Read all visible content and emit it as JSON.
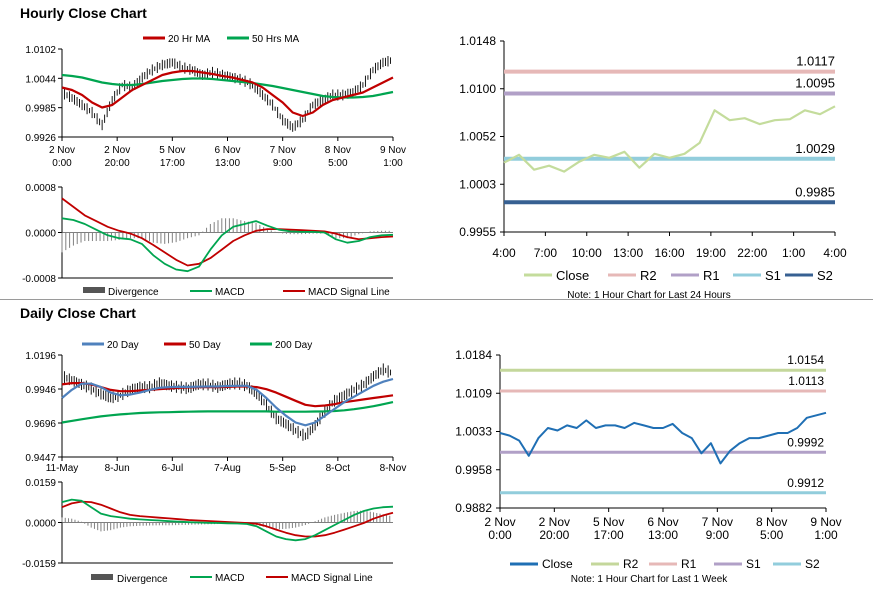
{
  "hourly_title": "Hourly Close Chart",
  "daily_title": "Daily Close Chart",
  "colors": {
    "ma20": "#c00000",
    "ma50": "#00a550",
    "close": "#2e75b6",
    "bars": "#000000",
    "divergence": "#808080",
    "macd": "#00a550",
    "signal": "#c00000",
    "levels_close": "#c4dc9c",
    "r2": "#e6b8b7",
    "r1": "#b1a0c7",
    "s1": "#92cddc",
    "s2": "#376092",
    "daily_ma20": "#4f81bd",
    "daily_close": "#1f6fb4",
    "daily_r2": "#c4d79b",
    "daily_r1": "#e6b8b7",
    "daily_s1": "#b1a0c7",
    "daily_s2": "#92cddc"
  },
  "chart_data": [
    {
      "id": "hourly_price",
      "type": "line",
      "legend": [
        "20 Hr MA",
        "50 Hrs MA"
      ],
      "yticks": [
        "1.0102",
        "1.0044",
        "0.9985",
        "0.9926"
      ],
      "ylim": [
        0.9926,
        1.0102
      ],
      "xticks": [
        [
          "2 Nov",
          "0:00"
        ],
        [
          "2 Nov",
          "20:00"
        ],
        [
          "5 Nov",
          "17:00"
        ],
        [
          "6 Nov",
          "13:00"
        ],
        [
          "7 Nov",
          "9:00"
        ],
        [
          "8 Nov",
          "5:00"
        ],
        [
          "9 Nov",
          "1:00"
        ]
      ],
      "close": [
        1.0015,
        1.0004,
        0.999,
        0.9975,
        0.995,
        1.0,
        1.003,
        1.0025,
        1.0045,
        1.006,
        1.007,
        1.0075,
        1.0065,
        1.006,
        1.005,
        1.0055,
        1.005,
        1.0045,
        1.004,
        1.003,
        1.001,
        0.999,
        0.996,
        0.9945,
        0.996,
        0.999,
        1.0,
        1.001,
        1.001,
        1.0015,
        1.003,
        1.006,
        1.0075,
        1.008
      ],
      "series": [
        {
          "name": "20 Hr MA",
          "values": [
            1.0025,
            1.002,
            1.001,
            0.9995,
            0.9985,
            0.999,
            1.0005,
            1.002,
            1.003,
            1.004,
            1.005,
            1.0055,
            1.0058,
            1.0058,
            1.0055,
            1.0052,
            1.0048,
            1.0045,
            1.004,
            1.0035,
            1.0025,
            1.001,
            0.9995,
            0.9975,
            0.9968,
            0.9975,
            0.999,
            1.0,
            1.0005,
            1.001,
            1.0015,
            1.0025,
            1.0035,
            1.0045
          ]
        },
        {
          "name": "50 Hrs MA",
          "values": [
            1.005,
            1.0048,
            1.0045,
            1.004,
            1.0035,
            1.0032,
            1.003,
            1.003,
            1.0032,
            1.0035,
            1.0038,
            1.004,
            1.0042,
            1.0043,
            1.0043,
            1.0042,
            1.004,
            1.0038,
            1.0036,
            1.0034,
            1.0031,
            1.0028,
            1.0024,
            1.002,
            1.0016,
            1.0012,
            1.0008,
            1.0006,
            1.0005,
            1.0005,
            1.0006,
            1.0008,
            1.0012,
            1.0016
          ]
        }
      ]
    },
    {
      "id": "hourly_macd",
      "type": "line",
      "legend": [
        "Divergence",
        "MACD",
        "MACD Signal Line"
      ],
      "yticks": [
        "0.0008",
        "0.0000",
        "-0.0008"
      ],
      "ylim": [
        -0.0008,
        0.0008
      ],
      "macd": [
        0.00025,
        0.00022,
        0.00015,
        5e-05,
        -5e-05,
        -0.0001,
        -0.00012,
        -0.0002,
        -0.0004,
        -0.00055,
        -0.00065,
        -0.00068,
        -0.0006,
        -0.0003,
        -5e-05,
        0.0001,
        0.00015,
        0.0002,
        0.00012,
        5e-05,
        2e-05,
        1e-05,
        1e-05,
        0.0,
        -0.00012,
        -0.00018,
        -0.00015,
        -8e-05,
        -5e-05,
        -4e-05
      ],
      "signal": [
        0.0006,
        0.00045,
        0.0003,
        0.0002,
        0.0001,
        3e-05,
        -2e-05,
        -0.0001,
        -0.00022,
        -0.00035,
        -0.00048,
        -0.00058,
        -0.00055,
        -0.00045,
        -0.0003,
        -0.00015,
        -5e-05,
        3e-05,
        6e-05,
        6e-05,
        5e-05,
        4e-05,
        3e-05,
        2e-05,
        -2e-05,
        -8e-05,
        -0.00012,
        -0.0001,
        -8e-05,
        -7e-05
      ],
      "divergence": [
        -0.00035,
        -0.00023,
        -0.00015,
        -0.00015,
        -0.00015,
        -0.00013,
        -0.0001,
        -0.0001,
        -0.00018,
        -0.0002,
        -0.00017,
        -0.0001,
        -5e-05,
        0.00015,
        0.00025,
        0.00025,
        0.0002,
        0.00017,
        6e-05,
        -1e-05,
        -3e-05,
        -3e-05,
        -2e-05,
        -2e-05,
        -0.0001,
        -0.0001,
        -3e-05,
        2e-05,
        3e-05,
        3e-05
      ]
    },
    {
      "id": "hourly_levels",
      "type": "line",
      "yticks": [
        "1.0148",
        "1.0100",
        "1.0052",
        "1.0003",
        "0.9955"
      ],
      "ylim": [
        0.9955,
        1.0148
      ],
      "xticks": [
        "4:00",
        "7:00",
        "10:00",
        "13:00",
        "16:00",
        "19:00",
        "22:00",
        "1:00",
        "4:00"
      ],
      "close": [
        1.0025,
        1.0033,
        1.0018,
        1.0022,
        1.0016,
        1.0026,
        1.0033,
        1.003,
        1.0036,
        1.002,
        1.0034,
        1.003,
        1.0034,
        1.0045,
        1.0078,
        1.0068,
        1.007,
        1.0064,
        1.0068,
        1.0069,
        1.0078,
        1.0074,
        1.0082
      ],
      "levels": [
        {
          "name": "R2",
          "value": 1.0117,
          "label": "1.0117"
        },
        {
          "name": "R1",
          "value": 1.0095,
          "label": "1.0095"
        },
        {
          "name": "S1",
          "value": 1.0029,
          "label": "1.0029"
        },
        {
          "name": "S2",
          "value": 0.9985,
          "label": "0.9985"
        }
      ],
      "legend": [
        "Close",
        "R2",
        "R1",
        "S1",
        "S2"
      ],
      "note": "Note: 1 Hour Chart for Last 24 Hours"
    },
    {
      "id": "daily_price",
      "type": "line",
      "legend": [
        "20 Day",
        "50 Day",
        "200 Day"
      ],
      "yticks": [
        "1.0196",
        "0.9946",
        "0.9696",
        "0.9447"
      ],
      "ylim": [
        0.9447,
        1.0196
      ],
      "xticks": [
        "11-May",
        "8-Jun",
        "6-Jul",
        "7-Aug",
        "5-Sep",
        "8-Oct",
        "8-Nov"
      ],
      "close": [
        1.004,
        1.001,
        0.998,
        0.995,
        0.991,
        0.988,
        0.99,
        0.994,
        0.996,
        0.996,
        0.999,
        0.997,
        0.996,
        0.995,
        0.998,
        0.998,
        0.996,
        0.998,
        0.999,
        0.997,
        0.991,
        0.983,
        0.973,
        0.969,
        0.964,
        0.96,
        0.968,
        0.978,
        0.986,
        0.99,
        0.994,
        0.998,
        1.004,
        1.009,
        1.006
      ],
      "series": [
        {
          "name": "20 Day",
          "values": [
            0.988,
            0.994,
            0.9985,
            0.9985,
            0.996,
            0.992,
            0.99,
            0.9905,
            0.992,
            0.994,
            0.9955,
            0.996,
            0.9962,
            0.9962,
            0.9963,
            0.9965,
            0.9965,
            0.9968,
            0.997,
            0.997,
            0.994,
            0.988,
            0.981,
            0.975,
            0.97,
            0.968,
            0.97,
            0.975,
            0.98,
            0.985,
            0.989,
            0.993,
            0.997,
            1.0,
            1.002
          ]
        },
        {
          "name": "50 Day",
          "values": [
            0.998,
            0.999,
            0.999,
            0.998,
            0.996,
            0.994,
            0.993,
            0.993,
            0.9935,
            0.994,
            0.9945,
            0.995,
            0.9955,
            0.9958,
            0.996,
            0.996,
            0.996,
            0.9962,
            0.9965,
            0.9965,
            0.996,
            0.9945,
            0.992,
            0.989,
            0.986,
            0.983,
            0.982,
            0.9825,
            0.9835,
            0.985,
            0.986,
            0.987,
            0.988,
            0.989,
            0.99
          ]
        },
        {
          "name": "200 Day",
          "values": [
            0.97,
            0.9712,
            0.9724,
            0.9735,
            0.9745,
            0.9753,
            0.976,
            0.9765,
            0.977,
            0.9773,
            0.9775,
            0.9776,
            0.9778,
            0.978,
            0.9781,
            0.9782,
            0.9782,
            0.9782,
            0.9782,
            0.9782,
            0.9782,
            0.9782,
            0.978,
            0.978,
            0.978,
            0.978,
            0.9781,
            0.9782,
            0.9785,
            0.979,
            0.9798,
            0.9808,
            0.982,
            0.9835,
            0.985
          ]
        }
      ]
    },
    {
      "id": "daily_macd",
      "type": "line",
      "legend": [
        "Divergence",
        "MACD",
        "MACD Signal Line"
      ],
      "yticks": [
        "0.0159",
        "0.0000",
        "-0.0159"
      ],
      "ylim": [
        -0.0159,
        0.0159
      ],
      "macd": [
        0.008,
        0.009,
        0.0085,
        0.006,
        0.0035,
        0.0025,
        0.002,
        0.0015,
        0.0012,
        0.001,
        0.0008,
        0.0005,
        0.0003,
        0.0001,
        0.0,
        -0.0001,
        -0.0002,
        -0.0003,
        -0.0004,
        -0.0006,
        -0.0015,
        -0.0035,
        -0.0055,
        -0.0065,
        -0.007,
        -0.0065,
        -0.005,
        -0.003,
        -0.001,
        0.001,
        0.003,
        0.0045,
        0.0055,
        0.006,
        0.0062
      ],
      "signal": [
        0.006,
        0.0075,
        0.0082,
        0.008,
        0.007,
        0.0055,
        0.004,
        0.003,
        0.0025,
        0.0022,
        0.0019,
        0.0016,
        0.0013,
        0.001,
        0.0008,
        0.0006,
        0.0004,
        0.0002,
        0.0,
        -0.0002,
        -0.0005,
        -0.0015,
        -0.0028,
        -0.004,
        -0.005,
        -0.0055,
        -0.0055,
        -0.005,
        -0.004,
        -0.0028,
        -0.0015,
        -0.0002,
        0.0015,
        0.0028,
        0.0038
      ],
      "divergence": [
        0.002,
        0.0015,
        0.0003,
        -0.002,
        -0.0035,
        -0.003,
        -0.002,
        -0.0015,
        -0.0013,
        -0.0012,
        -0.0011,
        -0.0011,
        -0.001,
        -0.0009,
        -0.0008,
        -0.0007,
        -0.0006,
        -0.0005,
        -0.0004,
        -0.0004,
        -0.001,
        -0.002,
        -0.0027,
        -0.0025,
        -0.002,
        -0.001,
        0.0005,
        0.002,
        0.003,
        0.0038,
        0.0045,
        0.0047,
        0.004,
        0.0032,
        0.0024
      ]
    },
    {
      "id": "daily_levels",
      "type": "line",
      "yticks": [
        "1.0184",
        "1.0109",
        "1.0033",
        "0.9958",
        "0.9882"
      ],
      "ylim": [
        0.9882,
        1.0184
      ],
      "xticks": [
        [
          "2 Nov",
          "0:00"
        ],
        [
          "2 Nov",
          "20:00"
        ],
        [
          "5 Nov",
          "17:00"
        ],
        [
          "6 Nov",
          "13:00"
        ],
        [
          "7 Nov",
          "9:00"
        ],
        [
          "8 Nov",
          "5:00"
        ],
        [
          "9 Nov",
          "1:00"
        ]
      ],
      "close": [
        1.003,
        1.0025,
        1.0015,
        0.9985,
        1.002,
        1.004,
        1.0035,
        1.0045,
        1.004,
        1.0055,
        1.004,
        1.0045,
        1.0045,
        1.004,
        1.005,
        1.0045,
        1.004,
        1.004,
        1.0048,
        1.003,
        1.002,
        0.999,
        1.001,
        0.997,
        0.9995,
        1.001,
        1.002,
        1.002,
        1.0025,
        1.003,
        1.003,
        1.004,
        1.006,
        1.0065,
        1.007
      ],
      "levels": [
        {
          "name": "R2",
          "value": 1.0154,
          "label": "1.0154"
        },
        {
          "name": "R1",
          "value": 1.0113,
          "label": "1.0113"
        },
        {
          "name": "S1",
          "value": 0.9992,
          "label": "0.9992"
        },
        {
          "name": "S2",
          "value": 0.9912,
          "label": "0.9912"
        }
      ],
      "legend": [
        "Close",
        "R2",
        "R1",
        "S1",
        "S2"
      ],
      "note": "Note: 1 Hour Chart for Last 1 Week"
    }
  ]
}
